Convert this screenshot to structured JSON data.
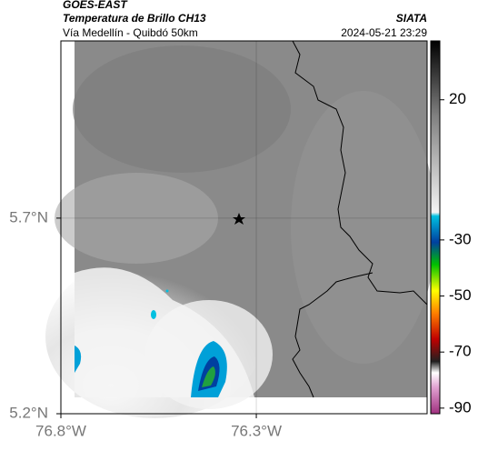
{
  "header": {
    "title": "GOES-EAST",
    "subtitle": "Temperatura de Brillo CH13",
    "source": "SIATA",
    "route": "Vía Medellín - Quibdó 50km",
    "datetime": "2024-05-21 23:29"
  },
  "map": {
    "xlim": [
      -76.8,
      -75.863
    ],
    "ylim": [
      5.2,
      6.153
    ],
    "xticks": [
      {
        "value": -76.8,
        "label": "76.8°W"
      },
      {
        "value": -76.3,
        "label": "76.3°W"
      }
    ],
    "yticks": [
      {
        "value": 5.2,
        "label": "5.2°N"
      },
      {
        "value": 5.7,
        "label": "5.7°N"
      }
    ]
  },
  "colorbar": {
    "lim": [
      -92,
      41
    ],
    "ticks": [
      20,
      -30,
      -50,
      -70,
      -90
    ]
  }
}
